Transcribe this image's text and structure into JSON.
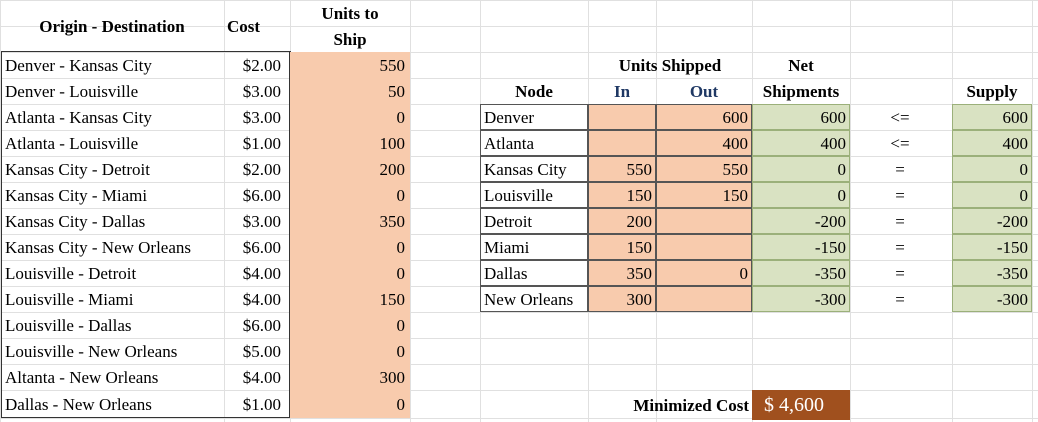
{
  "headers": {
    "origin_destination": "Origin - Destination",
    "cost": "Cost",
    "units_to_ship_line1": "Units to",
    "units_to_ship_line2": "Ship",
    "units_shipped": "Units Shipped",
    "net_line1": "Net",
    "node": "Node",
    "in": "In",
    "out": "Out",
    "net_line2": "Shipments",
    "supply": "Supply"
  },
  "routes": [
    {
      "route": "Denver - Kansas City",
      "cost": "$2.00",
      "units": "550"
    },
    {
      "route": "Denver - Louisville",
      "cost": "$3.00",
      "units": "50"
    },
    {
      "route": "Atlanta - Kansas City",
      "cost": "$3.00",
      "units": "0"
    },
    {
      "route": "Atlanta - Louisville",
      "cost": "$1.00",
      "units": "100"
    },
    {
      "route": "Kansas City - Detroit",
      "cost": "$2.00",
      "units": "200"
    },
    {
      "route": "Kansas City - Miami",
      "cost": "$6.00",
      "units": "0"
    },
    {
      "route": "Kansas City - Dallas",
      "cost": "$3.00",
      "units": "350"
    },
    {
      "route": "Kansas City - New Orleans",
      "cost": "$6.00",
      "units": "0"
    },
    {
      "route": "Louisville - Detroit",
      "cost": "$4.00",
      "units": "0"
    },
    {
      "route": "Louisville - Miami",
      "cost": "$4.00",
      "units": "150"
    },
    {
      "route": "Louisville - Dallas",
      "cost": "$6.00",
      "units": "0"
    },
    {
      "route": "Louisville - New Orleans",
      "cost": "$5.00",
      "units": "0"
    },
    {
      "route": "Altanta - New Orleans",
      "cost": "$4.00",
      "units": "300"
    },
    {
      "route": "Dallas - New Orleans",
      "cost": "$1.00",
      "units": "0"
    }
  ],
  "nodes": [
    {
      "node": "Denver",
      "in": "",
      "out": "600",
      "net": "600",
      "op": "<=",
      "supply": "600"
    },
    {
      "node": "Atlanta",
      "in": "",
      "out": "400",
      "net": "400",
      "op": "<=",
      "supply": "400"
    },
    {
      "node": "Kansas City",
      "in": "550",
      "out": "550",
      "net": "0",
      "op": "=",
      "supply": "0"
    },
    {
      "node": "Louisville",
      "in": "150",
      "out": "150",
      "net": "0",
      "op": "=",
      "supply": "0"
    },
    {
      "node": "Detroit",
      "in": "200",
      "out": "",
      "net": "-200",
      "op": "=",
      "supply": "-200"
    },
    {
      "node": "Miami",
      "in": "150",
      "out": "",
      "net": "-150",
      "op": "=",
      "supply": "-150"
    },
    {
      "node": "Dallas",
      "in": "350",
      "out": "0",
      "net": "-350",
      "op": "=",
      "supply": "-350"
    },
    {
      "node": "New Orleans",
      "in": "300",
      "out": "",
      "net": "-300",
      "op": "=",
      "supply": "-300"
    }
  ],
  "result": {
    "label": "Minimized Cost",
    "value": "$  4,600"
  },
  "colors": {
    "input_fill": "#f8cbad",
    "formula_fill": "#d9e2c2",
    "result_fill": "#a0501e",
    "header_blue": "#1f3864"
  }
}
